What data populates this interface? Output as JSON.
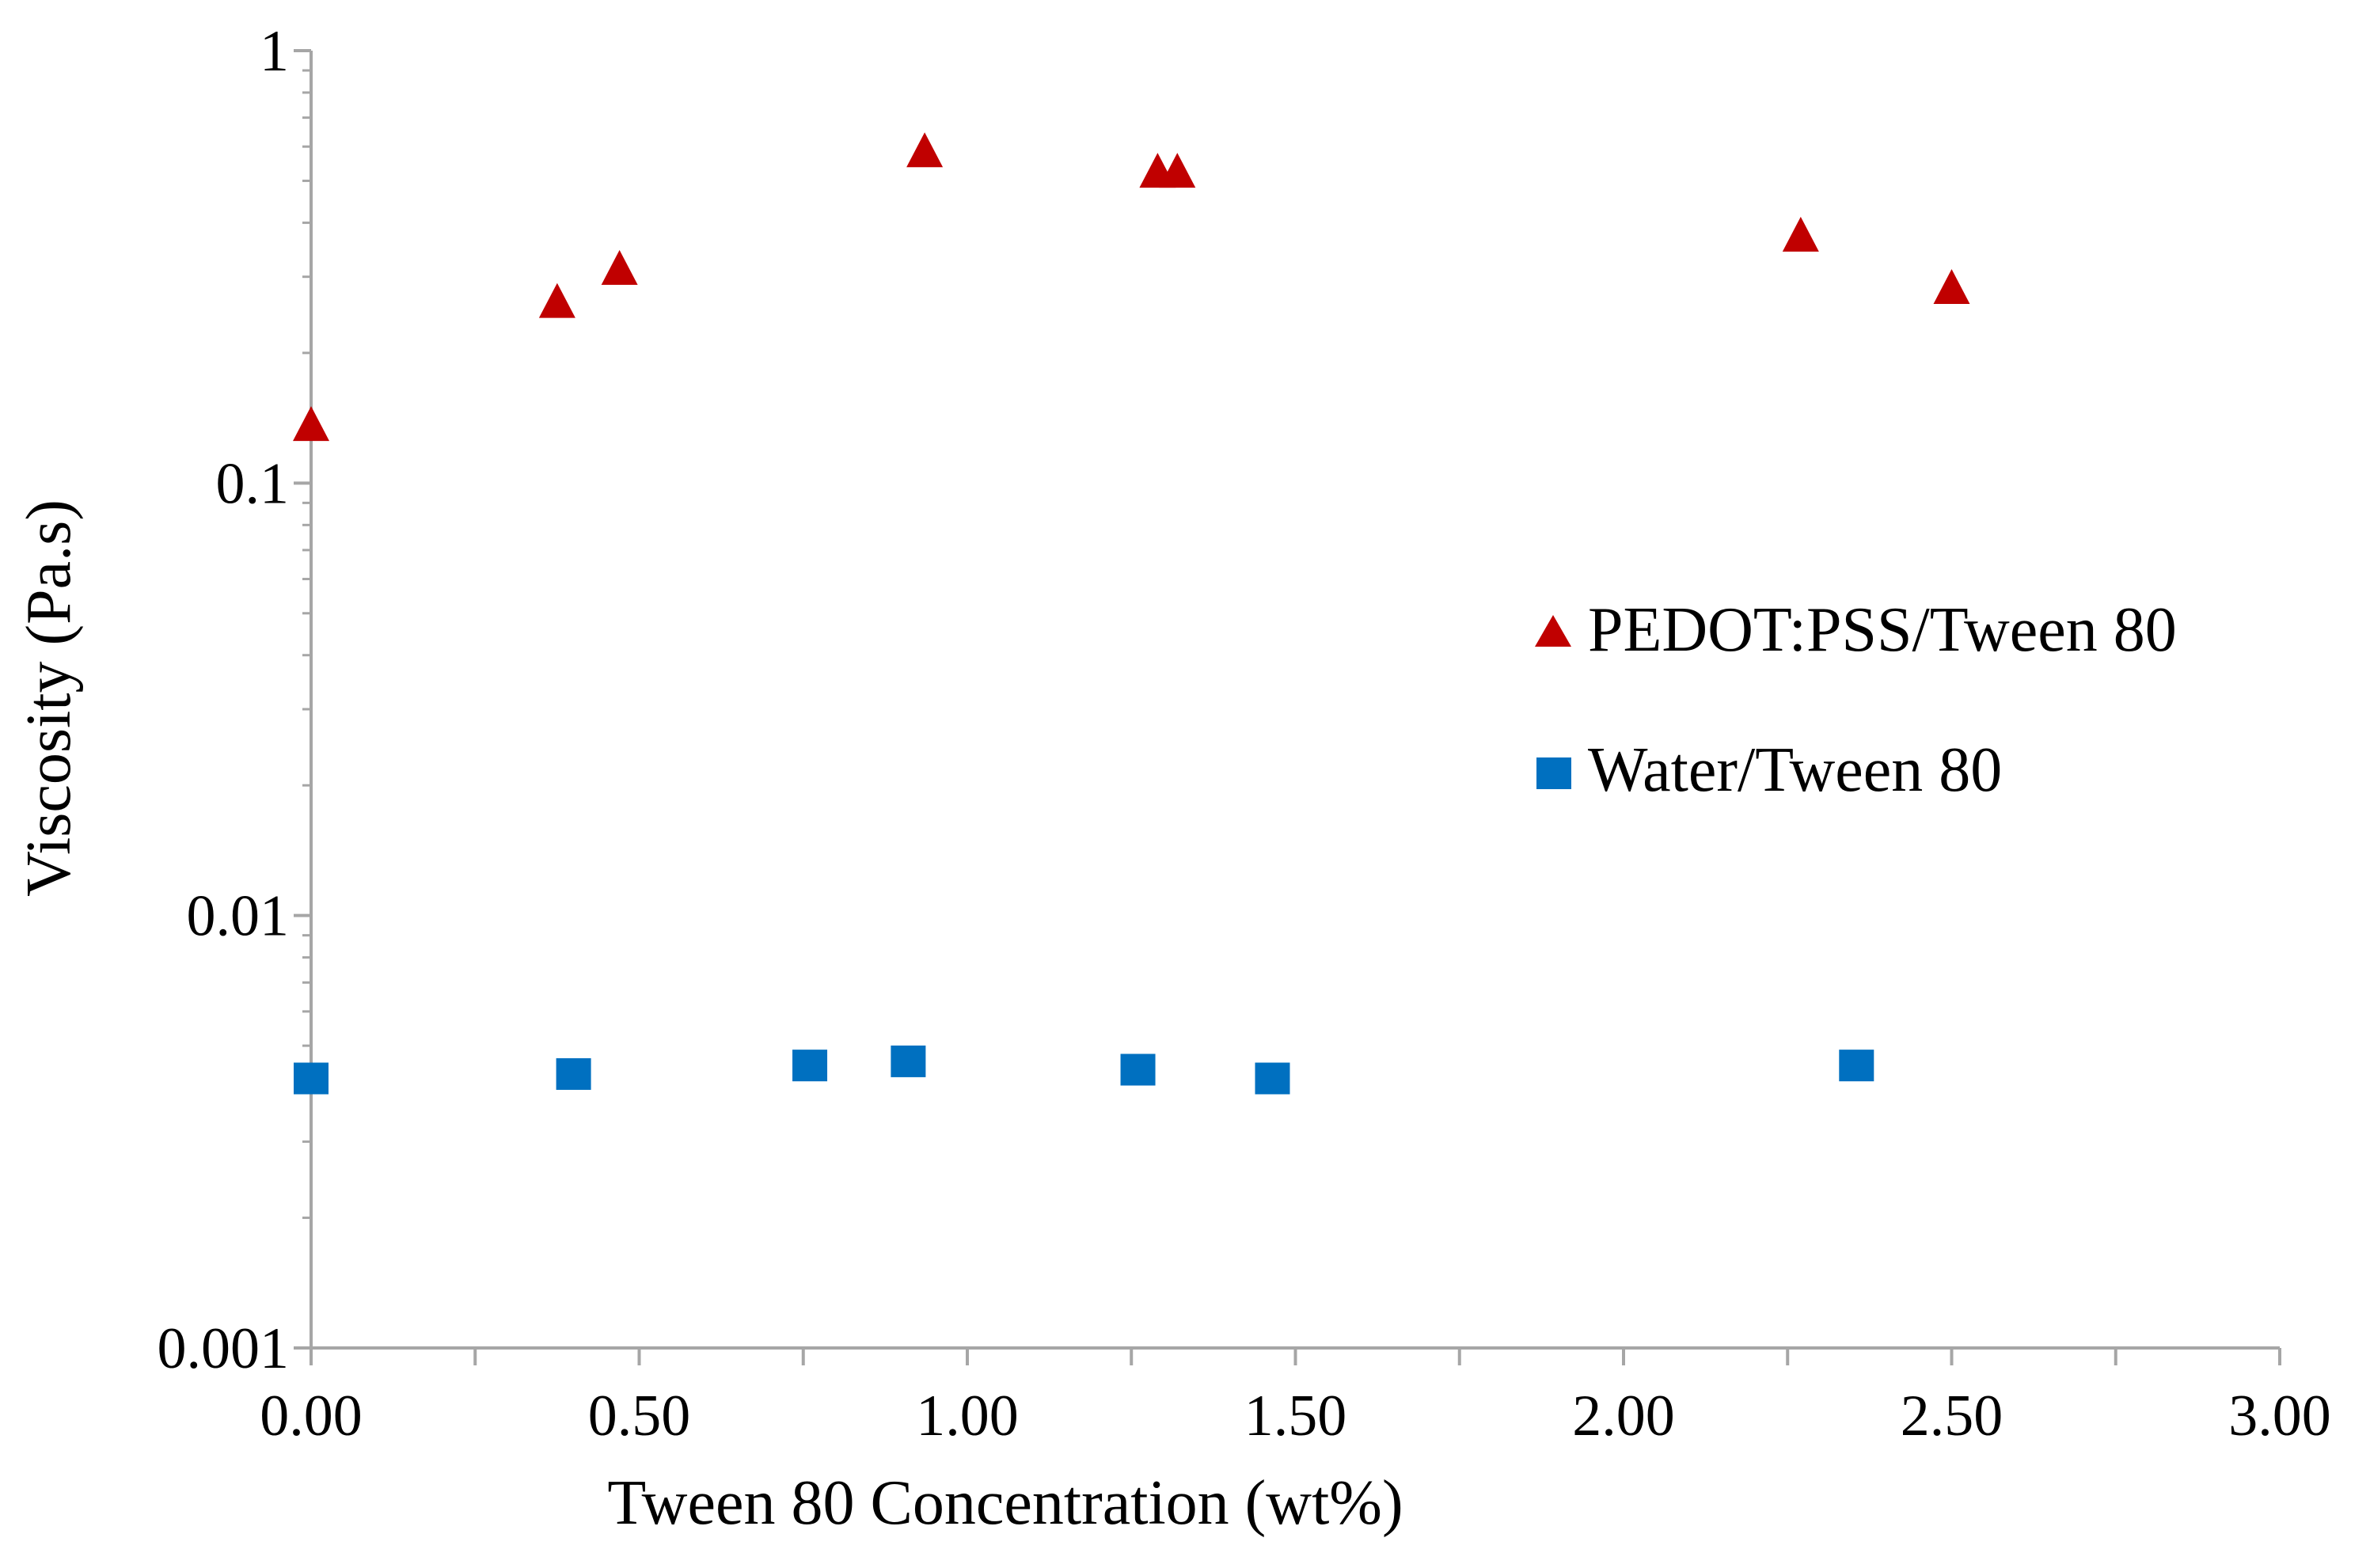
{
  "chart_data": {
    "type": "scatter",
    "title": "",
    "xlabel": "Tween 80 Concentration (wt%)",
    "ylabel": "Viscosity (Pa.s)",
    "xlim": [
      0,
      3
    ],
    "ylim": [
      0.001,
      1
    ],
    "yscale": "log",
    "grid": false,
    "legend_position": "right",
    "x_ticks": [
      0,
      0.5,
      1,
      1.5,
      2,
      2.5,
      3
    ],
    "x_tick_labels": [
      "0.00",
      "0.50",
      "1.00",
      "1.50",
      "2.00",
      "2.50",
      "3.00"
    ],
    "y_ticks": [
      1,
      0.1,
      0.01,
      0.001
    ],
    "y_tick_labels": [
      "1",
      "0.1",
      "0.01",
      "0.001"
    ],
    "series": [
      {
        "name": "PEDOT:PSS/Tween 80",
        "marker": "triangle",
        "color": "#C00000",
        "x": [
          0.0,
          0.375,
          0.47,
          0.935,
          1.29,
          1.32,
          2.27,
          2.5
        ],
        "y": [
          0.135,
          0.26,
          0.31,
          0.58,
          0.52,
          0.52,
          0.37,
          0.28
        ]
      },
      {
        "name": "Water/Tween 80",
        "marker": "square",
        "color": "#0070C0",
        "x": [
          0.0,
          0.4,
          0.76,
          0.91,
          1.26,
          1.465,
          2.355
        ],
        "y": [
          0.0042,
          0.0043,
          0.0045,
          0.0046,
          0.0044,
          0.0042,
          0.0045
        ]
      }
    ]
  }
}
